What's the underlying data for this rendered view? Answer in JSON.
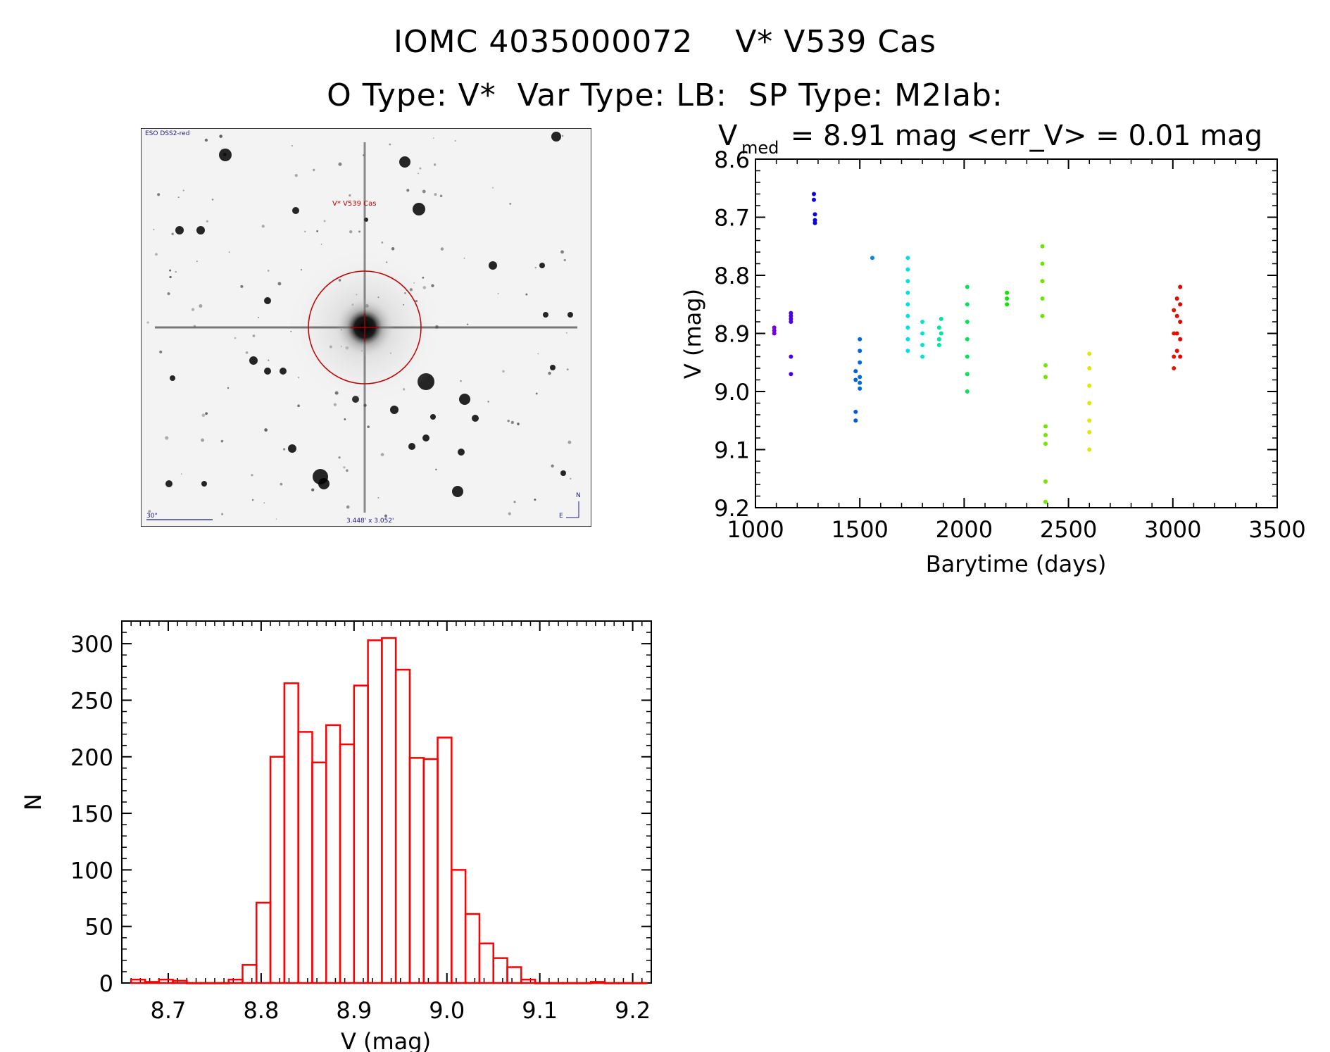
{
  "title_line1": "IOMC 4035000072    V* V539 Cas",
  "title_line2": "O Type: V*  Var Type: LB:  SP Type: M2Iab:",
  "finder": {
    "survey_label": "ESO DSS2-red",
    "target_label": "V* V539 Cas",
    "scale_label": "30\"",
    "fov_label": "3.448' x 3.052'",
    "north_label": "N",
    "east_label": "E"
  },
  "colors": {
    "histogram": "#ff0000",
    "finder_marker": "#c00000",
    "finder_text": "#1a1a8c"
  },
  "chart_data": [
    {
      "type": "scatter",
      "title": "V_med = 8.91 mag <err_V> = 0.01 mag",
      "title_main": "V",
      "title_sub": "med",
      "title_rest": " = 8.91 mag <err_V> = 0.01 mag",
      "xlabel": "Barytime (days)",
      "ylabel": "V (mag)",
      "xlim": [
        1000,
        3500
      ],
      "ylim": [
        9.2,
        8.6
      ],
      "y_inverted": true,
      "xticks": [
        "1000",
        "1500",
        "2000",
        "2500",
        "3000",
        "3500"
      ],
      "yticks": [
        "8.6",
        "8.7",
        "8.8",
        "8.9",
        "9.0",
        "9.1",
        "9.2"
      ],
      "color_scale": "rainbow by time",
      "points": [
        {
          "x": 1090,
          "y": 8.89
        },
        {
          "x": 1090,
          "y": 8.895
        },
        {
          "x": 1090,
          "y": 8.9
        },
        {
          "x": 1170,
          "y": 8.865
        },
        {
          "x": 1170,
          "y": 8.87
        },
        {
          "x": 1170,
          "y": 8.875
        },
        {
          "x": 1170,
          "y": 8.88
        },
        {
          "x": 1170,
          "y": 8.94
        },
        {
          "x": 1170,
          "y": 8.97
        },
        {
          "x": 1280,
          "y": 8.66
        },
        {
          "x": 1280,
          "y": 8.67
        },
        {
          "x": 1285,
          "y": 8.695
        },
        {
          "x": 1285,
          "y": 8.705
        },
        {
          "x": 1285,
          "y": 8.71
        },
        {
          "x": 1480,
          "y": 8.965
        },
        {
          "x": 1480,
          "y": 8.98
        },
        {
          "x": 1480,
          "y": 9.035
        },
        {
          "x": 1480,
          "y": 9.05
        },
        {
          "x": 1500,
          "y": 8.91
        },
        {
          "x": 1500,
          "y": 8.93
        },
        {
          "x": 1500,
          "y": 8.95
        },
        {
          "x": 1500,
          "y": 8.975
        },
        {
          "x": 1500,
          "y": 8.985
        },
        {
          "x": 1500,
          "y": 8.995
        },
        {
          "x": 1560,
          "y": 8.77
        },
        {
          "x": 1730,
          "y": 8.77
        },
        {
          "x": 1730,
          "y": 8.79
        },
        {
          "x": 1730,
          "y": 8.81
        },
        {
          "x": 1730,
          "y": 8.83
        },
        {
          "x": 1730,
          "y": 8.85
        },
        {
          "x": 1730,
          "y": 8.87
        },
        {
          "x": 1730,
          "y": 8.89
        },
        {
          "x": 1730,
          "y": 8.91
        },
        {
          "x": 1730,
          "y": 8.93
        },
        {
          "x": 1800,
          "y": 8.88
        },
        {
          "x": 1800,
          "y": 8.9
        },
        {
          "x": 1800,
          "y": 8.92
        },
        {
          "x": 1800,
          "y": 8.94
        },
        {
          "x": 1880,
          "y": 8.89
        },
        {
          "x": 1880,
          "y": 8.91
        },
        {
          "x": 1880,
          "y": 8.92
        },
        {
          "x": 1890,
          "y": 8.875
        },
        {
          "x": 1890,
          "y": 8.9
        },
        {
          "x": 2015,
          "y": 8.82
        },
        {
          "x": 2015,
          "y": 8.85
        },
        {
          "x": 2015,
          "y": 8.88
        },
        {
          "x": 2015,
          "y": 8.91
        },
        {
          "x": 2015,
          "y": 8.94
        },
        {
          "x": 2015,
          "y": 8.97
        },
        {
          "x": 2015,
          "y": 9.0
        },
        {
          "x": 2205,
          "y": 8.83
        },
        {
          "x": 2205,
          "y": 8.84
        },
        {
          "x": 2205,
          "y": 8.85
        },
        {
          "x": 2375,
          "y": 8.75
        },
        {
          "x": 2375,
          "y": 8.78
        },
        {
          "x": 2375,
          "y": 8.81
        },
        {
          "x": 2375,
          "y": 8.84
        },
        {
          "x": 2375,
          "y": 8.87
        },
        {
          "x": 2390,
          "y": 8.955
        },
        {
          "x": 2390,
          "y": 8.975
        },
        {
          "x": 2390,
          "y": 9.06
        },
        {
          "x": 2390,
          "y": 9.075
        },
        {
          "x": 2390,
          "y": 9.09
        },
        {
          "x": 2390,
          "y": 9.155
        },
        {
          "x": 2390,
          "y": 9.19
        },
        {
          "x": 2600,
          "y": 8.935
        },
        {
          "x": 2600,
          "y": 8.96
        },
        {
          "x": 2600,
          "y": 8.99
        },
        {
          "x": 2600,
          "y": 9.02
        },
        {
          "x": 2600,
          "y": 9.05
        },
        {
          "x": 2600,
          "y": 9.07
        },
        {
          "x": 2600,
          "y": 9.1
        },
        {
          "x": 3005,
          "y": 8.86
        },
        {
          "x": 3005,
          "y": 8.9
        },
        {
          "x": 3005,
          "y": 8.94
        },
        {
          "x": 3005,
          "y": 8.96
        },
        {
          "x": 3020,
          "y": 8.84
        },
        {
          "x": 3020,
          "y": 8.87
        },
        {
          "x": 3020,
          "y": 8.9
        },
        {
          "x": 3020,
          "y": 8.93
        },
        {
          "x": 3035,
          "y": 8.82
        },
        {
          "x": 3035,
          "y": 8.85
        },
        {
          "x": 3035,
          "y": 8.88
        },
        {
          "x": 3035,
          "y": 8.91
        },
        {
          "x": 3035,
          "y": 8.94
        }
      ]
    },
    {
      "type": "bar",
      "title": "",
      "xlabel": "V (mag)",
      "ylabel": "N",
      "xlim": [
        8.65,
        9.22
      ],
      "ylim": [
        0,
        320
      ],
      "xticks": [
        "8.7",
        "8.8",
        "8.9",
        "9.0",
        "9.1",
        "9.2"
      ],
      "yticks": [
        "0",
        "50",
        "100",
        "150",
        "200",
        "250",
        "300"
      ],
      "bin_width": 0.015,
      "bin_start": 8.66,
      "values": [
        3,
        1,
        3,
        2,
        0,
        0,
        0,
        3,
        16,
        71,
        200,
        265,
        222,
        195,
        228,
        211,
        263,
        303,
        305,
        277,
        199,
        198,
        217,
        100,
        61,
        35,
        22,
        14,
        3,
        0,
        0,
        0,
        0,
        1,
        0,
        0,
        0
      ]
    }
  ]
}
